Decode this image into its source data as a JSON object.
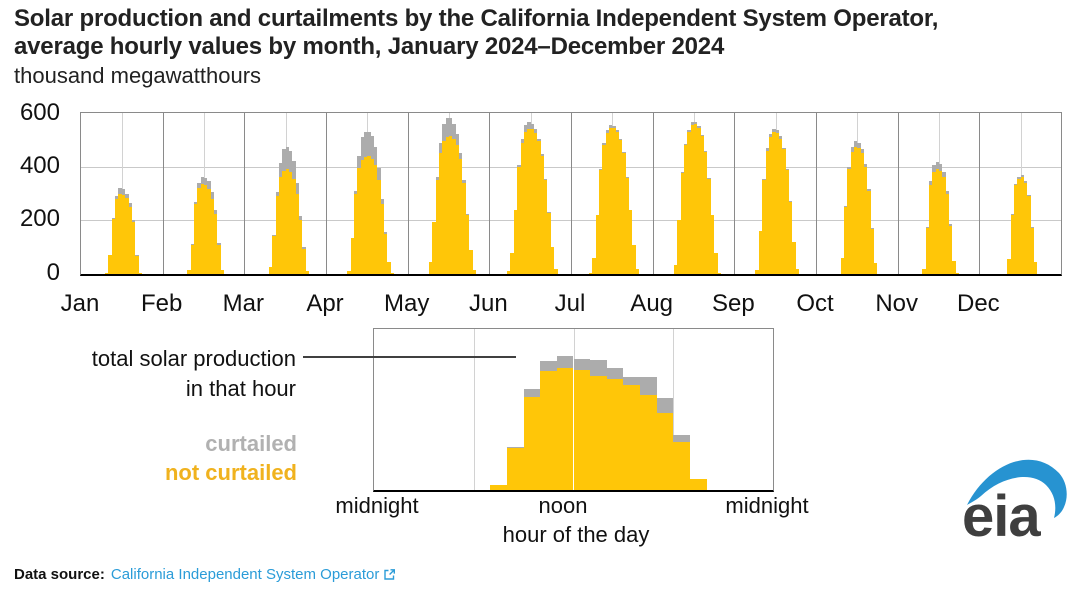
{
  "title": {
    "line1": "Solar production and curtailments by the California Independent System Operator,",
    "line2": "average hourly values by month, January 2024–December 2024",
    "unit": "thousand megawatthours"
  },
  "colors": {
    "not_curtailed": "#FFC608",
    "curtailed": "#ACACAC",
    "link_blue": "#2B9CD8",
    "logo_blue": "#2793D1",
    "month_divider": "#8a8a8a",
    "gridline": "#c9c9c9"
  },
  "legend": {
    "curtailed": "curtailed",
    "not_curtailed": "not curtailed"
  },
  "source": {
    "prefix": "Data source:",
    "link_text": "California Independent System Operator",
    "icon": "external-link-icon"
  },
  "logo": {
    "text": "eia"
  },
  "chart_data": [
    {
      "id": "main",
      "type": "bar",
      "stacked": true,
      "title": "Solar production and curtailments by CAISO, average hourly values by month, Jan 2024–Dec 2024",
      "ylabel": "thousand megawatthours",
      "ylim": [
        0,
        600
      ],
      "y_tick_labels": [
        "600",
        "400",
        "200",
        "0"
      ],
      "x_note": "each month shows 24 average hourly values (hours 0–23)",
      "grid": true,
      "months": [
        {
          "label": "Jan",
          "not_curtailed": [
            0,
            0,
            0,
            0,
            0,
            0,
            0,
            2,
            70,
            205,
            280,
            300,
            295,
            282,
            250,
            195,
            70,
            5,
            0,
            0,
            0,
            0,
            0,
            0
          ],
          "curtailed": [
            0,
            0,
            0,
            0,
            0,
            0,
            0,
            0,
            0,
            5,
            12,
            20,
            22,
            18,
            15,
            8,
            2,
            0,
            0,
            0,
            0,
            0,
            0,
            0
          ]
        },
        {
          "label": "Feb",
          "not_curtailed": [
            0,
            0,
            0,
            0,
            0,
            0,
            0,
            15,
            110,
            260,
            320,
            335,
            330,
            315,
            280,
            225,
            110,
            15,
            0,
            0,
            0,
            0,
            0,
            0
          ],
          "curtailed": [
            0,
            0,
            0,
            0,
            0,
            0,
            0,
            0,
            3,
            10,
            20,
            25,
            28,
            30,
            25,
            15,
            5,
            0,
            0,
            0,
            0,
            0,
            0,
            0
          ]
        },
        {
          "label": "Mar",
          "not_curtailed": [
            0,
            0,
            0,
            0,
            0,
            0,
            0,
            25,
            140,
            290,
            360,
            385,
            390,
            380,
            355,
            300,
            200,
            95,
            10,
            0,
            0,
            0,
            0,
            0
          ],
          "curtailed": [
            0,
            0,
            0,
            0,
            0,
            0,
            0,
            0,
            5,
            15,
            55,
            80,
            85,
            80,
            65,
            40,
            15,
            5,
            0,
            0,
            0,
            0,
            0,
            0
          ]
        },
        {
          "label": "Apr",
          "not_curtailed": [
            0,
            0,
            0,
            0,
            0,
            0,
            10,
            135,
            300,
            395,
            425,
            435,
            440,
            430,
            405,
            350,
            260,
            150,
            45,
            5,
            0,
            0,
            0,
            0
          ],
          "curtailed": [
            0,
            0,
            0,
            0,
            0,
            0,
            0,
            0,
            10,
            45,
            85,
            95,
            90,
            85,
            70,
            45,
            20,
            5,
            0,
            0,
            0,
            0,
            0,
            0
          ]
        },
        {
          "label": "May",
          "not_curtailed": [
            0,
            0,
            0,
            0,
            0,
            0,
            45,
            195,
            350,
            450,
            495,
            510,
            515,
            505,
            480,
            430,
            340,
            220,
            90,
            15,
            0,
            0,
            0,
            0
          ],
          "curtailed": [
            0,
            0,
            0,
            0,
            0,
            0,
            0,
            0,
            10,
            40,
            65,
            70,
            65,
            55,
            40,
            20,
            10,
            5,
            0,
            0,
            0,
            0,
            0,
            0
          ]
        },
        {
          "label": "Jun",
          "not_curtailed": [
            0,
            0,
            0,
            0,
            0,
            10,
            80,
            240,
            400,
            490,
            530,
            540,
            540,
            525,
            495,
            440,
            350,
            230,
            100,
            20,
            0,
            0,
            0,
            0
          ],
          "curtailed": [
            0,
            0,
            0,
            0,
            0,
            0,
            0,
            0,
            5,
            15,
            25,
            25,
            20,
            15,
            10,
            8,
            5,
            2,
            0,
            0,
            0,
            0,
            0,
            0
          ]
        },
        {
          "label": "Jul",
          "not_curtailed": [
            0,
            0,
            0,
            0,
            0,
            5,
            60,
            220,
            390,
            480,
            525,
            545,
            545,
            530,
            500,
            450,
            360,
            240,
            110,
            20,
            0,
            0,
            0,
            0
          ],
          "curtailed": [
            0,
            0,
            0,
            0,
            0,
            0,
            0,
            0,
            3,
            8,
            10,
            10,
            8,
            6,
            5,
            3,
            2,
            0,
            0,
            0,
            0,
            0,
            0,
            0
          ]
        },
        {
          "label": "Aug",
          "not_curtailed": [
            0,
            0,
            0,
            0,
            0,
            0,
            35,
            200,
            380,
            480,
            530,
            555,
            560,
            545,
            515,
            455,
            355,
            220,
            80,
            5,
            0,
            0,
            0,
            0
          ],
          "curtailed": [
            0,
            0,
            0,
            0,
            0,
            0,
            0,
            0,
            2,
            6,
            8,
            10,
            8,
            6,
            4,
            3,
            2,
            0,
            0,
            0,
            0,
            0,
            0,
            0
          ]
        },
        {
          "label": "Sep",
          "not_curtailed": [
            0,
            0,
            0,
            0,
            0,
            0,
            15,
            160,
            350,
            460,
            510,
            530,
            525,
            505,
            465,
            390,
            270,
            120,
            20,
            0,
            0,
            0,
            0,
            0
          ],
          "curtailed": [
            0,
            0,
            0,
            0,
            0,
            0,
            0,
            0,
            3,
            8,
            12,
            12,
            10,
            8,
            5,
            3,
            2,
            0,
            0,
            0,
            0,
            0,
            0,
            0
          ]
        },
        {
          "label": "Oct",
          "not_curtailed": [
            0,
            0,
            0,
            0,
            0,
            0,
            0,
            60,
            250,
            390,
            455,
            475,
            470,
            450,
            400,
            310,
            170,
            40,
            0,
            0,
            0,
            0,
            0,
            0
          ],
          "curtailed": [
            0,
            0,
            0,
            0,
            0,
            0,
            0,
            0,
            3,
            10,
            20,
            22,
            20,
            15,
            10,
            5,
            2,
            0,
            0,
            0,
            0,
            0,
            0,
            0
          ]
        },
        {
          "label": "Nov",
          "not_curtailed": [
            0,
            0,
            0,
            0,
            0,
            0,
            0,
            20,
            170,
            330,
            380,
            390,
            385,
            360,
            300,
            180,
            50,
            5,
            0,
            0,
            0,
            0,
            0,
            0
          ],
          "curtailed": [
            0,
            0,
            0,
            0,
            0,
            0,
            0,
            0,
            5,
            15,
            25,
            28,
            25,
            20,
            10,
            5,
            0,
            0,
            0,
            0,
            0,
            0,
            0,
            0
          ]
        },
        {
          "label": "Dec",
          "not_curtailed": [
            0,
            0,
            0,
            0,
            0,
            0,
            0,
            0,
            55,
            220,
            330,
            355,
            360,
            340,
            290,
            175,
            45,
            0,
            0,
            0,
            0,
            0,
            0,
            0
          ],
          "curtailed": [
            0,
            0,
            0,
            0,
            0,
            0,
            0,
            0,
            0,
            2,
            5,
            8,
            8,
            5,
            3,
            2,
            0,
            0,
            0,
            0,
            0,
            0,
            0,
            0
          ]
        }
      ]
    },
    {
      "id": "inset-example-day",
      "type": "bar",
      "stacked": true,
      "annotation_line1": "total solar production",
      "annotation_line2": "in that hour",
      "xlabel": "hour of the day",
      "x_tick_labels": [
        "midnight",
        "noon",
        "midnight"
      ],
      "units": "percent of plot height (illustrative zoom of one month)",
      "ylim": [
        0,
        100
      ],
      "not_curtailed": [
        0,
        0,
        0,
        0,
        0,
        0,
        0,
        3,
        26,
        58,
        74,
        75.5,
        74.5,
        71,
        69,
        65,
        59,
        48,
        30,
        7,
        0,
        0,
        0,
        0
      ],
      "curtailed": [
        0,
        0,
        0,
        0,
        0,
        0,
        0,
        0,
        1,
        5,
        6,
        8,
        7,
        10,
        7,
        5,
        11,
        9,
        4,
        0,
        0,
        0,
        0,
        0
      ]
    }
  ]
}
